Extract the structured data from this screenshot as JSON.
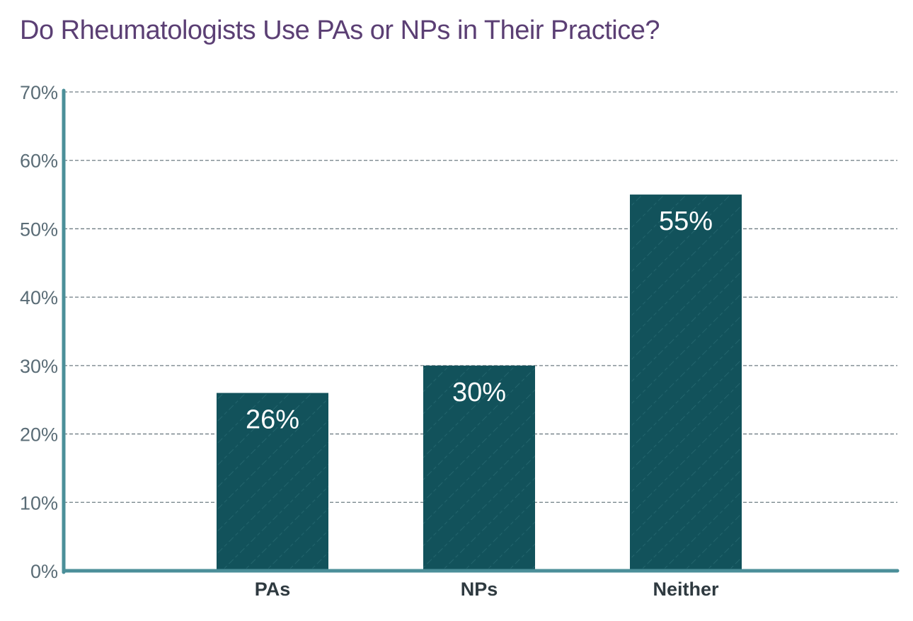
{
  "chart_data": {
    "type": "bar",
    "title": "Do Rheumatologists Use PAs or NPs in Their Practice?",
    "xlabel": "",
    "ylabel": "",
    "categories": [
      "PAs",
      "NPs",
      "Neither"
    ],
    "values": [
      26,
      30,
      55
    ],
    "value_labels": [
      "26%",
      "30%",
      "55%"
    ],
    "ylim": [
      0,
      70
    ],
    "yticks": [
      0,
      10,
      20,
      30,
      40,
      50,
      60,
      70
    ],
    "ytick_labels": [
      "0%",
      "10%",
      "20%",
      "30%",
      "40%",
      "50%",
      "60%",
      "70%"
    ],
    "grid": true,
    "legend": "none",
    "colors": {
      "bar": "#12525b",
      "bar_hatch": "#2a6c74",
      "axis": "#4b8f99",
      "grid": "#6f7d84",
      "title": "#5b3f74",
      "tick_text": "#5a6c76",
      "category_text": "#2f3a40",
      "value_text": "#ffffff"
    }
  }
}
